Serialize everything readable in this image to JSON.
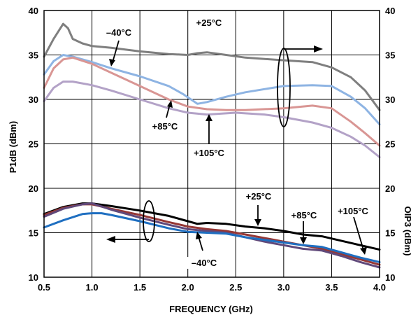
{
  "chart_data": {
    "type": "line",
    "title": "",
    "xlabel": "FREQUENCY (GHz)",
    "ylabel": "P1dB (dBm)",
    "ylabel_right": "OIP3 (dBm)",
    "xlim": [
      0.5,
      4.0
    ],
    "ylim": [
      10,
      40
    ],
    "ylim_right": [
      10,
      40
    ],
    "x_ticks": [
      "0.5",
      "1.0",
      "1.5",
      "2.0",
      "2.5",
      "3.0",
      "3.5",
      "4.0"
    ],
    "y_ticks": [
      "10",
      "15",
      "20",
      "25",
      "30",
      "35",
      "40"
    ],
    "y_ticks_right": [
      "10",
      "15",
      "20",
      "25",
      "30",
      "35",
      "40"
    ],
    "grid": true,
    "series": [
      {
        "name": "+25°C",
        "group": "OIP3",
        "color": "#7f7f7f",
        "x": [
          0.5,
          0.6,
          0.7,
          0.75,
          0.8,
          0.9,
          1.0,
          1.2,
          1.5,
          1.8,
          2.0,
          2.1,
          2.2,
          2.4,
          2.6,
          3.0,
          3.3,
          3.5,
          3.7,
          3.85,
          4.0
        ],
        "y": [
          34.8,
          36.8,
          38.5,
          38.0,
          36.8,
          36.3,
          36.0,
          35.8,
          35.4,
          35.1,
          35.0,
          35.2,
          35.3,
          35.0,
          34.7,
          34.4,
          34.2,
          33.6,
          32.5,
          31.0,
          28.8
        ]
      },
      {
        "name": "-40°C",
        "group": "OIP3",
        "color": "#8eb4e3",
        "x": [
          0.5,
          0.6,
          0.7,
          0.8,
          1.0,
          1.2,
          1.5,
          1.8,
          1.95,
          2.1,
          2.2,
          2.4,
          2.6,
          3.0,
          3.3,
          3.5,
          3.7,
          3.85,
          4.0
        ],
        "y": [
          32.8,
          34.3,
          35.0,
          34.8,
          34.2,
          33.5,
          32.6,
          31.5,
          30.6,
          29.5,
          29.7,
          30.3,
          30.8,
          31.5,
          31.6,
          31.5,
          30.3,
          29.0,
          27.2
        ]
      },
      {
        "name": "+85°C",
        "group": "OIP3",
        "color": "#d99694",
        "x": [
          0.5,
          0.6,
          0.7,
          0.8,
          1.0,
          1.2,
          1.5,
          1.8,
          2.0,
          2.2,
          2.4,
          2.6,
          3.0,
          3.3,
          3.5,
          3.7,
          3.85,
          4.0
        ],
        "y": [
          31.3,
          33.5,
          34.5,
          34.7,
          34.0,
          33.0,
          31.5,
          30.0,
          29.2,
          28.9,
          28.8,
          28.8,
          29.0,
          29.3,
          29.0,
          27.5,
          26.2,
          24.8
        ]
      },
      {
        "name": "+105°C",
        "group": "OIP3",
        "color": "#b3a2c7",
        "x": [
          0.5,
          0.6,
          0.7,
          0.8,
          1.0,
          1.2,
          1.5,
          1.8,
          2.0,
          2.2,
          2.5,
          2.8,
          3.0,
          3.3,
          3.5,
          3.7,
          3.85,
          4.0
        ],
        "y": [
          29.8,
          31.3,
          32.0,
          32.0,
          31.6,
          31.0,
          30.0,
          29.0,
          28.5,
          28.3,
          28.5,
          28.3,
          28.0,
          27.4,
          26.8,
          25.8,
          24.8,
          23.5
        ]
      },
      {
        "name": "+25°C",
        "group": "P1dB",
        "color": "#000000",
        "x": [
          0.5,
          0.7,
          0.9,
          1.0,
          1.2,
          1.5,
          1.8,
          2.0,
          2.1,
          2.2,
          2.4,
          2.6,
          2.8,
          3.0,
          3.2,
          3.4,
          3.6,
          3.8,
          4.0
        ],
        "y": [
          17.1,
          17.9,
          18.3,
          18.3,
          18.0,
          17.5,
          16.9,
          16.3,
          16.0,
          16.1,
          16.0,
          15.7,
          15.5,
          15.2,
          14.8,
          14.6,
          14.1,
          13.6,
          13.1
        ]
      },
      {
        "name": "+85°C",
        "group": "P1dB",
        "color": "#953735",
        "x": [
          0.5,
          0.7,
          0.9,
          1.0,
          1.2,
          1.5,
          1.8,
          2.0,
          2.2,
          2.4,
          2.6,
          2.8,
          3.0,
          3.2,
          3.4,
          3.6,
          3.8,
          4.0
        ],
        "y": [
          17.0,
          17.8,
          18.2,
          18.2,
          17.7,
          17.0,
          16.2,
          15.7,
          15.4,
          15.2,
          14.8,
          14.4,
          14.0,
          13.6,
          13.2,
          12.6,
          12.0,
          11.4
        ]
      },
      {
        "name": "+105°C",
        "group": "P1dB",
        "color": "#60497a",
        "x": [
          0.5,
          0.7,
          0.9,
          1.0,
          1.2,
          1.5,
          1.8,
          2.0,
          2.2,
          2.4,
          2.6,
          2.8,
          3.0,
          3.2,
          3.4,
          3.6,
          3.8,
          4.0
        ],
        "y": [
          16.8,
          17.7,
          18.2,
          18.3,
          17.6,
          16.7,
          15.9,
          15.4,
          15.2,
          15.0,
          14.5,
          14.0,
          13.6,
          13.2,
          13.0,
          12.4,
          11.7,
          11.1
        ]
      },
      {
        "name": "-40°C",
        "group": "P1dB",
        "color": "#1f6fc1",
        "x": [
          0.5,
          0.7,
          0.9,
          1.0,
          1.1,
          1.2,
          1.5,
          1.8,
          2.0,
          2.2,
          2.4,
          2.6,
          2.8,
          3.0,
          3.2,
          3.4,
          3.6,
          3.8,
          4.0
        ],
        "y": [
          15.6,
          16.4,
          17.1,
          17.2,
          17.2,
          17.0,
          16.3,
          15.5,
          15.1,
          15.0,
          14.9,
          14.5,
          14.2,
          13.9,
          13.6,
          13.4,
          12.8,
          12.2,
          11.7
        ]
      }
    ],
    "annotations": {
      "oip3_m40": "–40°C",
      "oip3_p25": "+25°C",
      "oip3_p85": "+85°C",
      "oip3_p105": "+105°C",
      "p1db_p25": "+25°C",
      "p1db_p85": "+85°C",
      "p1db_p105": "+105°C",
      "p1db_m40": "–40°C"
    }
  }
}
